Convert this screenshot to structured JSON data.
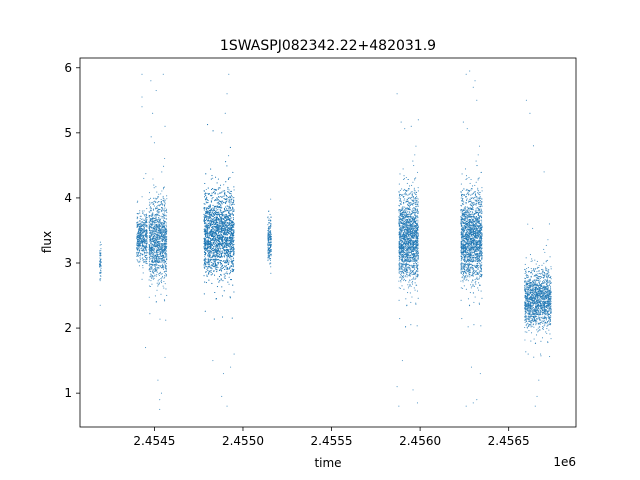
{
  "chart_data": {
    "type": "scatter",
    "title": "1SWASPJ082342.22+482031.9",
    "xlabel": "time",
    "ylabel": "flux",
    "x_offset_label": "1e6",
    "xlim": [
      2454080,
      2456880
    ],
    "ylim": [
      0.48,
      6.15
    ],
    "x_ticks": [
      2454500,
      2455000,
      2455500,
      2456000,
      2456500
    ],
    "x_tick_labels": [
      "2.4545",
      "2.4550",
      "2.4555",
      "2.4560",
      "2.4565"
    ],
    "y_ticks": [
      1,
      2,
      3,
      4,
      5,
      6
    ],
    "y_tick_labels": [
      "1",
      "2",
      "3",
      "4",
      "5",
      "6"
    ],
    "grid": false,
    "marker_color": "#1f77b4",
    "clusters": [
      {
        "x_start": 2454190,
        "x_end": 2454200,
        "y_center": 3.0,
        "y_spread": 0.45,
        "n": 60
      },
      {
        "x_start": 2454400,
        "x_end": 2454460,
        "y_center": 3.4,
        "y_spread": 0.55,
        "n": 500
      },
      {
        "x_start": 2454470,
        "x_end": 2454570,
        "y_center": 3.35,
        "y_spread": 0.9,
        "n": 1200
      },
      {
        "x_start": 2454780,
        "x_end": 2454950,
        "y_center": 3.45,
        "y_spread": 0.95,
        "n": 3200
      },
      {
        "x_start": 2455140,
        "x_end": 2455160,
        "y_center": 3.35,
        "y_spread": 0.5,
        "n": 200
      },
      {
        "x_start": 2455880,
        "x_end": 2455990,
        "y_center": 3.4,
        "y_spread": 1.0,
        "n": 1800
      },
      {
        "x_start": 2456230,
        "x_end": 2456350,
        "y_center": 3.4,
        "y_spread": 1.0,
        "n": 2000
      },
      {
        "x_start": 2456590,
        "x_end": 2456740,
        "y_center": 2.45,
        "y_spread": 0.65,
        "n": 1500
      }
    ],
    "outliers": [
      [
        2454430,
        5.9
      ],
      [
        2454430,
        5.55
      ],
      [
        2454430,
        5.4
      ],
      [
        2454440,
        4.3
      ],
      [
        2454480,
        5.8
      ],
      [
        2454490,
        5.3
      ],
      [
        2454510,
        5.65
      ],
      [
        2454550,
        5.9
      ],
      [
        2454560,
        5.1
      ],
      [
        2454530,
        0.75
      ],
      [
        2454530,
        0.9
      ],
      [
        2454520,
        1.2
      ],
      [
        2454540,
        1.0
      ],
      [
        2454450,
        1.7
      ],
      [
        2454560,
        1.55
      ],
      [
        2454880,
        5.0
      ],
      [
        2454900,
        5.3
      ],
      [
        2454920,
        5.9
      ],
      [
        2454910,
        5.6
      ],
      [
        2454890,
        1.3
      ],
      [
        2454880,
        0.95
      ],
      [
        2454910,
        0.8
      ],
      [
        2454950,
        1.6
      ],
      [
        2454930,
        1.4
      ],
      [
        2454830,
        1.5
      ],
      [
        2455870,
        5.6
      ],
      [
        2455870,
        1.1
      ],
      [
        2455880,
        0.8
      ],
      [
        2455900,
        1.5
      ],
      [
        2455950,
        5.1
      ],
      [
        2455960,
        1.05
      ],
      [
        2455990,
        5.2
      ],
      [
        2455985,
        0.85
      ],
      [
        2456260,
        5.9
      ],
      [
        2456280,
        5.95
      ],
      [
        2456300,
        5.7
      ],
      [
        2456310,
        5.8
      ],
      [
        2456320,
        5.5
      ],
      [
        2456260,
        0.8
      ],
      [
        2456300,
        0.85
      ],
      [
        2456320,
        0.9
      ],
      [
        2456290,
        1.4
      ],
      [
        2456340,
        1.3
      ],
      [
        2456600,
        5.5
      ],
      [
        2456620,
        5.3
      ],
      [
        2456640,
        4.8
      ],
      [
        2456650,
        0.8
      ],
      [
        2456660,
        0.95
      ],
      [
        2456670,
        1.2
      ],
      [
        2456700,
        4.4
      ],
      [
        2456680,
        1.6
      ],
      [
        2456730,
        3.6
      ],
      [
        2456610,
        1.6
      ],
      [
        2456625,
        1.8
      ]
    ]
  }
}
